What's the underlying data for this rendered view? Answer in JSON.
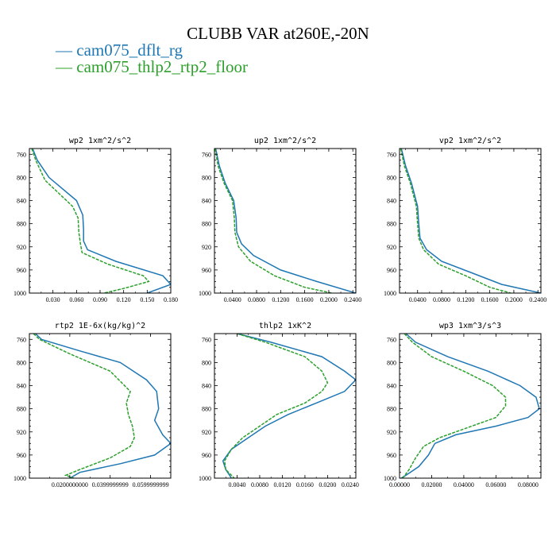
{
  "title": "CLUBB VAR at260E,-20N",
  "legend": [
    {
      "text": "— cam075_dflt_rg",
      "color": "#1f77b4"
    },
    {
      "text": "— cam075_thlp2_rtp2_floor",
      "color": "#2ca02c"
    }
  ],
  "chart_data": [
    {
      "type": "line",
      "title": "wp2  1xm^2/s^2",
      "xlim": [
        0,
        0.18
      ],
      "ylim": [
        750,
        1000
      ],
      "xticks": [
        "0.030",
        "0.060",
        "0.090",
        "0.120",
        "0.150",
        "0.180"
      ],
      "xtick_values": [
        0.03,
        0.06,
        0.09,
        0.12,
        0.15,
        0.18
      ],
      "yticks": [
        "760",
        "800",
        "840",
        "880",
        "920",
        "960",
        "1000"
      ],
      "y_inverted": true,
      "series": [
        {
          "color": "#1f77b4",
          "dash": false,
          "points": [
            [
              0.004,
              750
            ],
            [
              0.01,
              770
            ],
            [
              0.025,
              800
            ],
            [
              0.06,
              840
            ],
            [
              0.068,
              865
            ],
            [
              0.069,
              890
            ],
            [
              0.069,
              910
            ],
            [
              0.074,
              925
            ],
            [
              0.11,
              945
            ],
            [
              0.17,
              970
            ],
            [
              0.18,
              985
            ],
            [
              0.15,
              1000
            ]
          ]
        },
        {
          "color": "#2ca02c",
          "dash": true,
          "points": [
            [
              0.003,
              750
            ],
            [
              0.008,
              770
            ],
            [
              0.02,
              805
            ],
            [
              0.055,
              850
            ],
            [
              0.062,
              870
            ],
            [
              0.063,
              895
            ],
            [
              0.065,
              915
            ],
            [
              0.067,
              930
            ],
            [
              0.1,
              950
            ],
            [
              0.145,
              970
            ],
            [
              0.152,
              980
            ],
            [
              0.12,
              992
            ],
            [
              0.095,
              1000
            ]
          ]
        }
      ]
    },
    {
      "type": "line",
      "title": "up2  1xm^2/s^2",
      "xlim": [
        0.01,
        0.245
      ],
      "ylim": [
        750,
        1000
      ],
      "xticks": [
        "0.0400",
        "0.0800",
        "0.1200",
        "0.1600",
        "0.2000",
        "0.2400"
      ],
      "xtick_values": [
        0.04,
        0.08,
        0.12,
        0.16,
        0.2,
        0.24
      ],
      "yticks": [
        "760",
        "800",
        "840",
        "880",
        "920",
        "960",
        "1000"
      ],
      "y_inverted": true,
      "series": [
        {
          "color": "#1f77b4",
          "dash": false,
          "points": [
            [
              0.012,
              750
            ],
            [
              0.018,
              780
            ],
            [
              0.028,
              810
            ],
            [
              0.042,
              840
            ],
            [
              0.046,
              870
            ],
            [
              0.047,
              895
            ],
            [
              0.055,
              915
            ],
            [
              0.075,
              935
            ],
            [
              0.12,
              960
            ],
            [
              0.18,
              980
            ],
            [
              0.245,
              1000
            ]
          ]
        },
        {
          "color": "#2ca02c",
          "dash": true,
          "points": [
            [
              0.011,
              750
            ],
            [
              0.016,
              780
            ],
            [
              0.026,
              810
            ],
            [
              0.04,
              840
            ],
            [
              0.043,
              870
            ],
            [
              0.044,
              895
            ],
            [
              0.05,
              920
            ],
            [
              0.07,
              945
            ],
            [
              0.11,
              970
            ],
            [
              0.16,
              990
            ],
            [
              0.205,
              1000
            ]
          ]
        }
      ]
    },
    {
      "type": "line",
      "title": "vp2  1xm^2/s^2",
      "xlim": [
        0.01,
        0.245
      ],
      "ylim": [
        750,
        1000
      ],
      "xticks": [
        "0.0400",
        "0.0800",
        "0.1200",
        "0.1600",
        "0.2000",
        "0.2400"
      ],
      "xtick_values": [
        0.04,
        0.08,
        0.12,
        0.16,
        0.2,
        0.24
      ],
      "yticks": [
        "760",
        "800",
        "840",
        "880",
        "920",
        "960",
        "1000"
      ],
      "y_inverted": true,
      "series": [
        {
          "color": "#1f77b4",
          "dash": false,
          "points": [
            [
              0.013,
              750
            ],
            [
              0.02,
              780
            ],
            [
              0.03,
              810
            ],
            [
              0.04,
              850
            ],
            [
              0.042,
              880
            ],
            [
              0.044,
              905
            ],
            [
              0.055,
              925
            ],
            [
              0.08,
              945
            ],
            [
              0.13,
              965
            ],
            [
              0.18,
              985
            ],
            [
              0.245,
              1000
            ]
          ]
        },
        {
          "color": "#2ca02c",
          "dash": true,
          "points": [
            [
              0.012,
              750
            ],
            [
              0.018,
              780
            ],
            [
              0.028,
              810
            ],
            [
              0.038,
              850
            ],
            [
              0.04,
              880
            ],
            [
              0.042,
              905
            ],
            [
              0.05,
              925
            ],
            [
              0.075,
              950
            ],
            [
              0.12,
              970
            ],
            [
              0.16,
              990
            ],
            [
              0.195,
              1000
            ]
          ]
        }
      ]
    },
    {
      "type": "line",
      "title": "rtp2  1E-6x(kg/kg)^2",
      "xlim": [
        0,
        0.07
      ],
      "ylim": [
        750,
        1000
      ],
      "xticks": [
        "0.0200000000",
        "0.0399999999",
        "0.0599999999"
      ],
      "xtick_values": [
        0.02,
        0.04,
        0.06
      ],
      "yticks": [
        "760",
        "800",
        "840",
        "880",
        "920",
        "960",
        "1000"
      ],
      "y_inverted": true,
      "series": [
        {
          "color": "#1f77b4",
          "dash": false,
          "points": [
            [
              0.003,
              750
            ],
            [
              0.006,
              760
            ],
            [
              0.025,
              780
            ],
            [
              0.045,
              800
            ],
            [
              0.058,
              830
            ],
            [
              0.063,
              850
            ],
            [
              0.064,
              880
            ],
            [
              0.062,
              900
            ],
            [
              0.066,
              925
            ],
            [
              0.07,
              940
            ],
            [
              0.062,
              960
            ],
            [
              0.045,
              975
            ],
            [
              0.025,
              990
            ],
            [
              0.02,
              1000
            ]
          ]
        },
        {
          "color": "#2ca02c",
          "dash": true,
          "points": [
            [
              0.002,
              750
            ],
            [
              0.005,
              760
            ],
            [
              0.02,
              785
            ],
            [
              0.04,
              815
            ],
            [
              0.05,
              850
            ],
            [
              0.048,
              870
            ],
            [
              0.049,
              890
            ],
            [
              0.051,
              910
            ],
            [
              0.052,
              930
            ],
            [
              0.05,
              945
            ],
            [
              0.04,
              965
            ],
            [
              0.025,
              985
            ],
            [
              0.018,
              995
            ],
            [
              0.022,
              1000
            ]
          ]
        }
      ]
    },
    {
      "type": "line",
      "title": "thlp2  1xK^2",
      "xlim": [
        0,
        0.025
      ],
      "ylim": [
        750,
        1000
      ],
      "xticks": [
        "0.0040",
        "0.0080",
        "0.0120",
        "0.0160",
        "0.0200",
        "0.0240"
      ],
      "xtick_values": [
        0.004,
        0.008,
        0.012,
        0.016,
        0.02,
        0.024
      ],
      "yticks": [
        "760",
        "800",
        "840",
        "880",
        "920",
        "960",
        "1000"
      ],
      "y_inverted": true,
      "series": [
        {
          "color": "#1f77b4",
          "dash": false,
          "points": [
            [
              0.004,
              750
            ],
            [
              0.01,
              765
            ],
            [
              0.019,
              790
            ],
            [
              0.023,
              815
            ],
            [
              0.025,
              830
            ],
            [
              0.023,
              850
            ],
            [
              0.018,
              870
            ],
            [
              0.013,
              890
            ],
            [
              0.009,
              910
            ],
            [
              0.006,
              930
            ],
            [
              0.003,
              950
            ],
            [
              0.0015,
              970
            ],
            [
              0.002,
              985
            ],
            [
              0.003,
              1000
            ]
          ]
        },
        {
          "color": "#2ca02c",
          "dash": true,
          "points": [
            [
              0.004,
              750
            ],
            [
              0.009,
              765
            ],
            [
              0.016,
              790
            ],
            [
              0.019,
              815
            ],
            [
              0.02,
              835
            ],
            [
              0.019,
              850
            ],
            [
              0.016,
              870
            ],
            [
              0.011,
              890
            ],
            [
              0.008,
              910
            ],
            [
              0.005,
              930
            ],
            [
              0.003,
              950
            ],
            [
              0.0018,
              970
            ],
            [
              0.002,
              985
            ],
            [
              0.0035,
              1000
            ]
          ]
        }
      ]
    },
    {
      "type": "line",
      "title": "wp3  1xm^3/s^3",
      "xlim": [
        0,
        0.088
      ],
      "ylim": [
        750,
        1000
      ],
      "xticks": [
        "0.00000",
        "0.02000",
        "0.04000",
        "0.06000",
        "0.08000"
      ],
      "xtick_values": [
        0,
        0.02,
        0.04,
        0.06,
        0.08
      ],
      "yticks": [
        "760",
        "800",
        "840",
        "880",
        "920",
        "960",
        "1000"
      ],
      "y_inverted": true,
      "series": [
        {
          "color": "#1f77b4",
          "dash": false,
          "points": [
            [
              0.004,
              750
            ],
            [
              0.01,
              765
            ],
            [
              0.03,
              790
            ],
            [
              0.055,
              815
            ],
            [
              0.075,
              840
            ],
            [
              0.085,
              860
            ],
            [
              0.087,
              880
            ],
            [
              0.08,
              895
            ],
            [
              0.06,
              910
            ],
            [
              0.035,
              925
            ],
            [
              0.022,
              940
            ],
            [
              0.018,
              960
            ],
            [
              0.012,
              980
            ],
            [
              0.004,
              995
            ],
            [
              0.001,
              1000
            ]
          ]
        },
        {
          "color": "#2ca02c",
          "dash": true,
          "points": [
            [
              0.003,
              750
            ],
            [
              0.008,
              765
            ],
            [
              0.02,
              790
            ],
            [
              0.04,
              815
            ],
            [
              0.058,
              840
            ],
            [
              0.066,
              860
            ],
            [
              0.066,
              875
            ],
            [
              0.06,
              895
            ],
            [
              0.04,
              915
            ],
            [
              0.025,
              930
            ],
            [
              0.015,
              945
            ],
            [
              0.01,
              965
            ],
            [
              0.006,
              985
            ],
            [
              0.002,
              1000
            ]
          ]
        }
      ]
    }
  ]
}
